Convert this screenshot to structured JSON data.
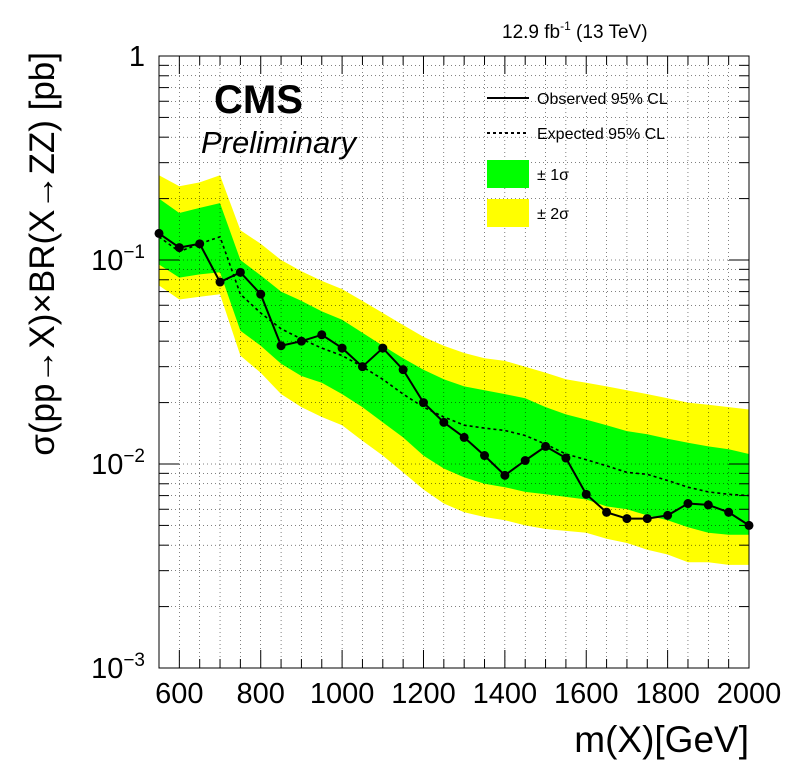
{
  "chart_data": {
    "type": "line",
    "lumi_label": "12.9 fb",
    "lumi_sup": "-1",
    "lumi_tail": " (13 TeV)",
    "cms_label": "CMS",
    "preliminary_label": "Preliminary",
    "ylabel": "σ(pp→X)×BR(X→ZZ) [pb]",
    "xlabel": "m(X)[GeV]",
    "xlim": [
      550,
      2000
    ],
    "ylim": [
      0.001,
      1
    ],
    "yscale": "log",
    "grid": true,
    "legend_position": "top-right",
    "x_ticks": [
      {
        "value": 600,
        "label": "600"
      },
      {
        "value": 800,
        "label": "800"
      },
      {
        "value": 1000,
        "label": "1000"
      },
      {
        "value": 1200,
        "label": "1200"
      },
      {
        "value": 1400,
        "label": "1400"
      },
      {
        "value": 1600,
        "label": "1600"
      },
      {
        "value": 1800,
        "label": "1800"
      },
      {
        "value": 2000,
        "label": "2000"
      }
    ],
    "y_ticks": [
      {
        "value": 1,
        "base": "1",
        "exp": ""
      },
      {
        "value": 0.1,
        "base": "10",
        "exp": "−1"
      },
      {
        "value": 0.01,
        "base": "10",
        "exp": "−2"
      },
      {
        "value": 0.001,
        "base": "10",
        "exp": "−3"
      }
    ],
    "legend": {
      "observed": "Observed 95% CL",
      "expected": "Expected 95% CL",
      "one_sigma": "± 1σ",
      "two_sigma": "± 2σ"
    },
    "colors": {
      "one_sigma": "#00ff00",
      "two_sigma": "#ffff00",
      "line": "#000000"
    },
    "x": [
      550,
      600,
      650,
      700,
      750,
      800,
      850,
      900,
      950,
      1000,
      1050,
      1100,
      1150,
      1200,
      1250,
      1300,
      1350,
      1400,
      1450,
      1500,
      1550,
      1600,
      1650,
      1700,
      1750,
      1800,
      1850,
      1900,
      1950,
      2000
    ],
    "observed": [
      0.135,
      0.115,
      0.12,
      0.078,
      0.087,
      0.068,
      0.038,
      0.04,
      0.043,
      0.037,
      0.03,
      0.037,
      0.029,
      0.02,
      0.016,
      0.0135,
      0.011,
      0.0088,
      0.0104,
      0.0122,
      0.0107,
      0.0071,
      0.0058,
      0.0054,
      0.0054,
      0.0056,
      0.0064,
      0.0063,
      0.0058,
      0.005
    ],
    "expected": [
      0.13,
      0.11,
      0.12,
      0.13,
      0.068,
      0.055,
      0.046,
      0.041,
      0.037,
      0.034,
      0.03,
      0.026,
      0.022,
      0.019,
      0.017,
      0.0155,
      0.015,
      0.0146,
      0.0138,
      0.0125,
      0.0112,
      0.0105,
      0.0098,
      0.0091,
      0.0089,
      0.0083,
      0.0077,
      0.0073,
      0.0071,
      0.007
    ],
    "one_sigma_low": [
      0.095,
      0.082,
      0.085,
      0.087,
      0.045,
      0.038,
      0.031,
      0.027,
      0.025,
      0.022,
      0.019,
      0.016,
      0.0135,
      0.011,
      0.0095,
      0.0086,
      0.008,
      0.0077,
      0.0073,
      0.0071,
      0.0069,
      0.0067,
      0.0062,
      0.006,
      0.0056,
      0.0053,
      0.0049,
      0.0046,
      0.0045,
      0.0045
    ],
    "one_sigma_high": [
      0.2,
      0.17,
      0.18,
      0.19,
      0.1,
      0.084,
      0.07,
      0.063,
      0.056,
      0.051,
      0.044,
      0.038,
      0.033,
      0.029,
      0.026,
      0.024,
      0.023,
      0.022,
      0.021,
      0.019,
      0.0175,
      0.0165,
      0.0155,
      0.0145,
      0.014,
      0.0133,
      0.0127,
      0.0122,
      0.0118,
      0.0112
    ],
    "two_sigma_low": [
      0.075,
      0.064,
      0.066,
      0.068,
      0.034,
      0.028,
      0.022,
      0.019,
      0.017,
      0.0155,
      0.013,
      0.011,
      0.0091,
      0.0075,
      0.0064,
      0.0058,
      0.0055,
      0.0053,
      0.005,
      0.0048,
      0.0047,
      0.0046,
      0.0043,
      0.0041,
      0.0038,
      0.0036,
      0.0033,
      0.0033,
      0.0032,
      0.0032
    ],
    "two_sigma_high": [
      0.26,
      0.23,
      0.24,
      0.26,
      0.14,
      0.12,
      0.1,
      0.088,
      0.079,
      0.072,
      0.063,
      0.055,
      0.048,
      0.042,
      0.038,
      0.035,
      0.033,
      0.032,
      0.03,
      0.028,
      0.026,
      0.025,
      0.024,
      0.023,
      0.022,
      0.021,
      0.02,
      0.0195,
      0.019,
      0.0185
    ]
  }
}
